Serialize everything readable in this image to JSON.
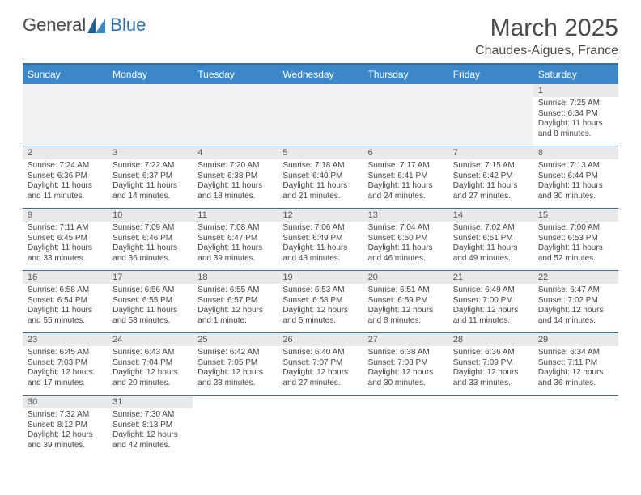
{
  "colors": {
    "header_bg": "#3b87c8",
    "header_text": "#ffffff",
    "rule": "#2f6fa7",
    "daynum_bg": "#e9e9e9",
    "blank_bg": "#f2f2f2",
    "body_text": "#444444",
    "title_text": "#4a4a4a",
    "page_bg": "#ffffff"
  },
  "logo": {
    "general": "General",
    "blue": "Blue"
  },
  "title": "March 2025",
  "location": "Chaudes-Aigues, France",
  "day_headers": [
    "Sunday",
    "Monday",
    "Tuesday",
    "Wednesday",
    "Thursday",
    "Friday",
    "Saturday"
  ],
  "weeks": [
    [
      null,
      null,
      null,
      null,
      null,
      null,
      {
        "n": "1",
        "sunrise": "Sunrise: 7:25 AM",
        "sunset": "Sunset: 6:34 PM",
        "daylight": "Daylight: 11 hours and 8 minutes."
      }
    ],
    [
      {
        "n": "2",
        "sunrise": "Sunrise: 7:24 AM",
        "sunset": "Sunset: 6:36 PM",
        "daylight": "Daylight: 11 hours and 11 minutes."
      },
      {
        "n": "3",
        "sunrise": "Sunrise: 7:22 AM",
        "sunset": "Sunset: 6:37 PM",
        "daylight": "Daylight: 11 hours and 14 minutes."
      },
      {
        "n": "4",
        "sunrise": "Sunrise: 7:20 AM",
        "sunset": "Sunset: 6:38 PM",
        "daylight": "Daylight: 11 hours and 18 minutes."
      },
      {
        "n": "5",
        "sunrise": "Sunrise: 7:18 AM",
        "sunset": "Sunset: 6:40 PM",
        "daylight": "Daylight: 11 hours and 21 minutes."
      },
      {
        "n": "6",
        "sunrise": "Sunrise: 7:17 AM",
        "sunset": "Sunset: 6:41 PM",
        "daylight": "Daylight: 11 hours and 24 minutes."
      },
      {
        "n": "7",
        "sunrise": "Sunrise: 7:15 AM",
        "sunset": "Sunset: 6:42 PM",
        "daylight": "Daylight: 11 hours and 27 minutes."
      },
      {
        "n": "8",
        "sunrise": "Sunrise: 7:13 AM",
        "sunset": "Sunset: 6:44 PM",
        "daylight": "Daylight: 11 hours and 30 minutes."
      }
    ],
    [
      {
        "n": "9",
        "sunrise": "Sunrise: 7:11 AM",
        "sunset": "Sunset: 6:45 PM",
        "daylight": "Daylight: 11 hours and 33 minutes."
      },
      {
        "n": "10",
        "sunrise": "Sunrise: 7:09 AM",
        "sunset": "Sunset: 6:46 PM",
        "daylight": "Daylight: 11 hours and 36 minutes."
      },
      {
        "n": "11",
        "sunrise": "Sunrise: 7:08 AM",
        "sunset": "Sunset: 6:47 PM",
        "daylight": "Daylight: 11 hours and 39 minutes."
      },
      {
        "n": "12",
        "sunrise": "Sunrise: 7:06 AM",
        "sunset": "Sunset: 6:49 PM",
        "daylight": "Daylight: 11 hours and 43 minutes."
      },
      {
        "n": "13",
        "sunrise": "Sunrise: 7:04 AM",
        "sunset": "Sunset: 6:50 PM",
        "daylight": "Daylight: 11 hours and 46 minutes."
      },
      {
        "n": "14",
        "sunrise": "Sunrise: 7:02 AM",
        "sunset": "Sunset: 6:51 PM",
        "daylight": "Daylight: 11 hours and 49 minutes."
      },
      {
        "n": "15",
        "sunrise": "Sunrise: 7:00 AM",
        "sunset": "Sunset: 6:53 PM",
        "daylight": "Daylight: 11 hours and 52 minutes."
      }
    ],
    [
      {
        "n": "16",
        "sunrise": "Sunrise: 6:58 AM",
        "sunset": "Sunset: 6:54 PM",
        "daylight": "Daylight: 11 hours and 55 minutes."
      },
      {
        "n": "17",
        "sunrise": "Sunrise: 6:56 AM",
        "sunset": "Sunset: 6:55 PM",
        "daylight": "Daylight: 11 hours and 58 minutes."
      },
      {
        "n": "18",
        "sunrise": "Sunrise: 6:55 AM",
        "sunset": "Sunset: 6:57 PM",
        "daylight": "Daylight: 12 hours and 1 minute."
      },
      {
        "n": "19",
        "sunrise": "Sunrise: 6:53 AM",
        "sunset": "Sunset: 6:58 PM",
        "daylight": "Daylight: 12 hours and 5 minutes."
      },
      {
        "n": "20",
        "sunrise": "Sunrise: 6:51 AM",
        "sunset": "Sunset: 6:59 PM",
        "daylight": "Daylight: 12 hours and 8 minutes."
      },
      {
        "n": "21",
        "sunrise": "Sunrise: 6:49 AM",
        "sunset": "Sunset: 7:00 PM",
        "daylight": "Daylight: 12 hours and 11 minutes."
      },
      {
        "n": "22",
        "sunrise": "Sunrise: 6:47 AM",
        "sunset": "Sunset: 7:02 PM",
        "daylight": "Daylight: 12 hours and 14 minutes."
      }
    ],
    [
      {
        "n": "23",
        "sunrise": "Sunrise: 6:45 AM",
        "sunset": "Sunset: 7:03 PM",
        "daylight": "Daylight: 12 hours and 17 minutes."
      },
      {
        "n": "24",
        "sunrise": "Sunrise: 6:43 AM",
        "sunset": "Sunset: 7:04 PM",
        "daylight": "Daylight: 12 hours and 20 minutes."
      },
      {
        "n": "25",
        "sunrise": "Sunrise: 6:42 AM",
        "sunset": "Sunset: 7:05 PM",
        "daylight": "Daylight: 12 hours and 23 minutes."
      },
      {
        "n": "26",
        "sunrise": "Sunrise: 6:40 AM",
        "sunset": "Sunset: 7:07 PM",
        "daylight": "Daylight: 12 hours and 27 minutes."
      },
      {
        "n": "27",
        "sunrise": "Sunrise: 6:38 AM",
        "sunset": "Sunset: 7:08 PM",
        "daylight": "Daylight: 12 hours and 30 minutes."
      },
      {
        "n": "28",
        "sunrise": "Sunrise: 6:36 AM",
        "sunset": "Sunset: 7:09 PM",
        "daylight": "Daylight: 12 hours and 33 minutes."
      },
      {
        "n": "29",
        "sunrise": "Sunrise: 6:34 AM",
        "sunset": "Sunset: 7:11 PM",
        "daylight": "Daylight: 12 hours and 36 minutes."
      }
    ],
    [
      {
        "n": "30",
        "sunrise": "Sunrise: 7:32 AM",
        "sunset": "Sunset: 8:12 PM",
        "daylight": "Daylight: 12 hours and 39 minutes."
      },
      {
        "n": "31",
        "sunrise": "Sunrise: 7:30 AM",
        "sunset": "Sunset: 8:13 PM",
        "daylight": "Daylight: 12 hours and 42 minutes."
      },
      null,
      null,
      null,
      null,
      null
    ]
  ]
}
